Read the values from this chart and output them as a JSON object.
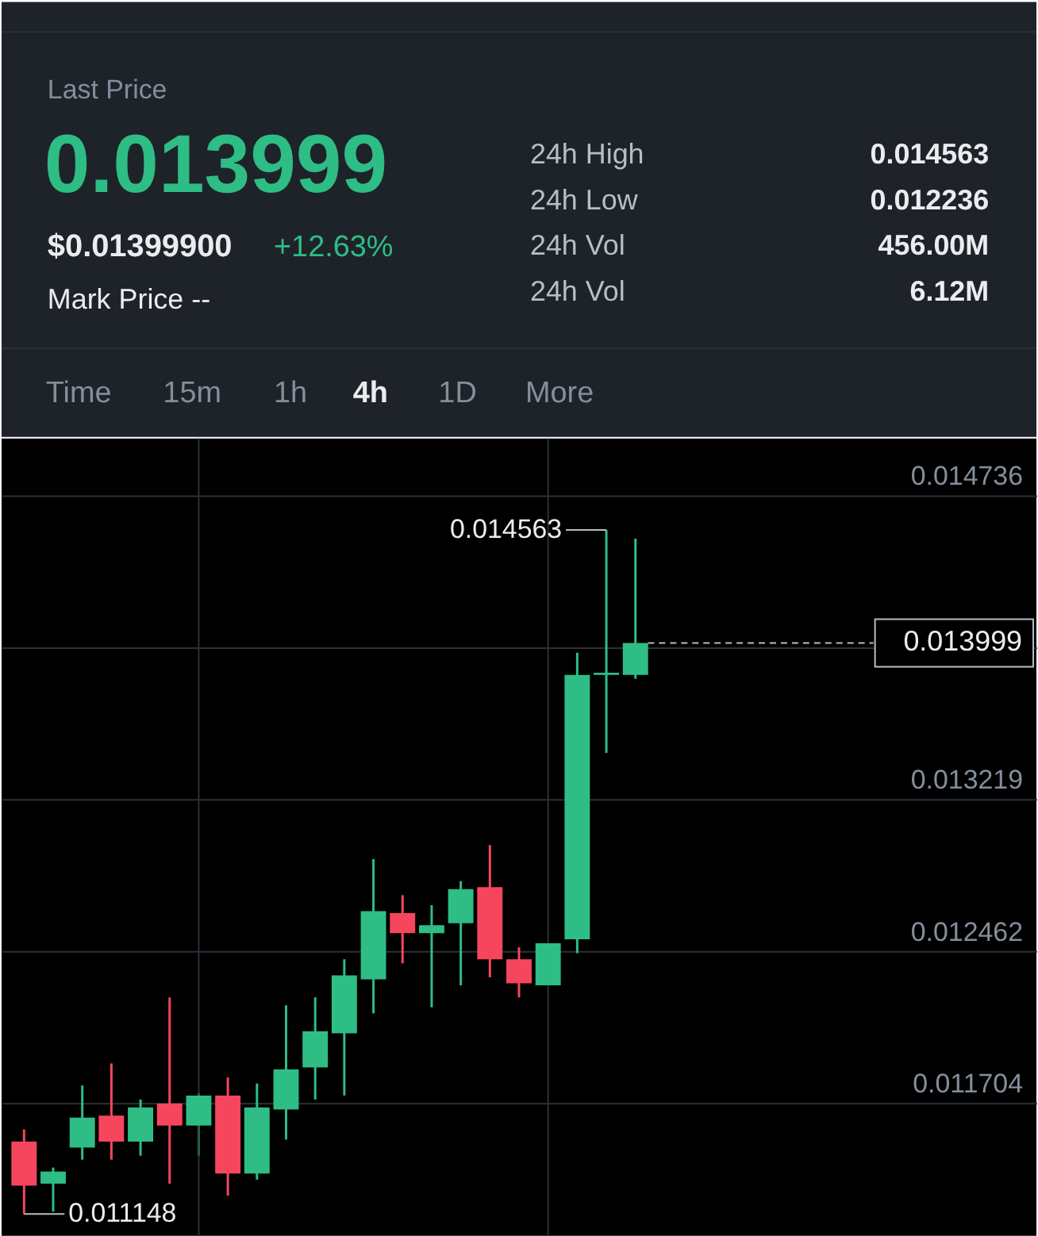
{
  "chart_data": [
    {
      "type": "other",
      "annotations": [
        "Last Price",
        "0.013999",
        "$0.01399900",
        "+12.63%",
        "Mark Price --",
        "24h High",
        "0.014563",
        "24h Low",
        "0.012236",
        "24h Vol",
        "456.00M",
        "24h Vol",
        "6.12M",
        "Time",
        "15m",
        "1h",
        "4h",
        "1D",
        "More"
      ]
    },
    {
      "type": "candlestick",
      "categories": [
        null,
        null,
        null,
        null,
        null,
        null,
        null,
        null,
        null,
        null,
        null,
        null,
        null,
        null,
        null,
        null,
        null,
        null,
        null,
        null,
        null,
        null,
        null,
        null,
        null,
        null,
        null,
        null,
        null,
        null,
        null,
        null,
        null,
        null,
        null
      ],
      "ohlc": [
        [
          0.01151,
          0.01157,
          0.011148,
          0.01129
        ],
        [
          0.0113,
          0.01138,
          0.01116,
          0.01136
        ],
        [
          0.01148,
          0.01179,
          0.01142,
          0.01163
        ],
        [
          0.01164,
          0.0119,
          0.01142,
          0.01151
        ],
        [
          0.01151,
          0.01172,
          0.01144,
          0.01168
        ],
        [
          0.0117,
          0.01223,
          0.0113,
          0.01159
        ],
        [
          0.01159,
          0.01175,
          0.01144,
          0.01174
        ],
        [
          0.01174,
          0.01183,
          0.01124,
          0.01135
        ],
        [
          0.01135,
          0.0118,
          0.01132,
          0.01168
        ],
        [
          0.01167,
          0.01219,
          0.01152,
          0.01187
        ],
        [
          0.01188,
          0.01223,
          0.01172,
          0.01206
        ],
        [
          0.01205,
          0.01242,
          0.01174,
          0.01234
        ],
        [
          0.01232,
          0.01292,
          0.01215,
          0.01266
        ],
        [
          0.01265,
          0.01274,
          0.0124,
          0.01255
        ],
        [
          0.01255,
          0.01269,
          0.01218,
          0.01259
        ],
        [
          0.0126,
          0.01281,
          0.01229,
          0.01277
        ],
        [
          0.01278,
          0.01299,
          0.01233,
          0.01242
        ],
        [
          0.01242,
          0.01248,
          0.01223,
          0.0123
        ],
        [
          0.01229,
          0.0125,
          0.01229,
          0.0125
        ],
        [
          0.01252,
          0.01395,
          0.01245,
          0.01384
        ],
        [
          0.01384,
          0.014563,
          0.01345,
          0.01385
        ],
        [
          0.01384,
          0.01452,
          0.01382,
          0.013999
        ],
        null,
        null,
        null,
        null,
        null,
        null,
        null,
        null,
        null,
        null,
        null,
        null,
        null
      ],
      "colors": [
        "#f6465d",
        "#2ebd85",
        "#2ebd85",
        "#f6465d",
        "#2ebd85",
        "#f6465d",
        "#2ebd85",
        "#f6465d",
        "#2ebd85",
        "#2ebd85",
        "#2ebd85",
        "#2ebd85",
        "#2ebd85",
        "#f6465d",
        "#2ebd85",
        "#2ebd85",
        "#f6465d",
        "#f6465d",
        "#2ebd85",
        "#2ebd85",
        "#2ebd85",
        "#2ebd85",
        null,
        null,
        null,
        null,
        null,
        null,
        null,
        null,
        null,
        null,
        null,
        null,
        null
      ],
      "ylim": [
        0.01104,
        0.01502
      ],
      "yticks": [
        0.014736,
        {
          "value": 0.013977,
          "label": null
        },
        0.013219,
        0.012462,
        0.011704
      ],
      "grid": true,
      "tick_labels": "y",
      "ref_lines": [
        {
          "axis": "y",
          "value": 0.013999,
          "label": "0.013999",
          "line_style": "dashed",
          "color": "#b7bdc6"
        }
      ],
      "annotations": [
        "0.014563",
        "0.011148"
      ]
    }
  ]
}
